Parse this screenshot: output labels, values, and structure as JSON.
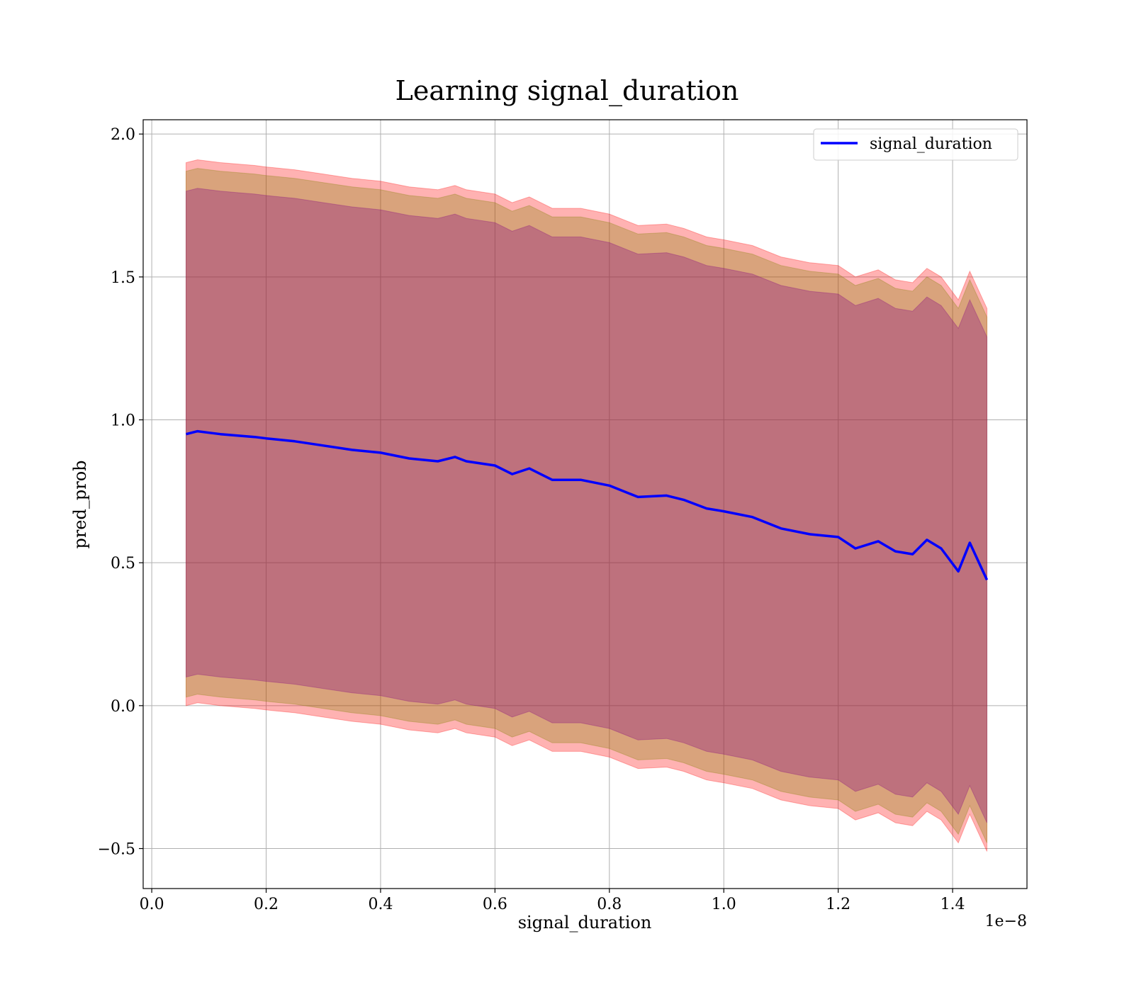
{
  "chart_data": {
    "type": "line",
    "title": "Learning signal_duration",
    "xlabel": "signal_duration",
    "ylabel": "pred_prob",
    "x_multiplier_label": "1e−8",
    "xlim": [
      -0.015,
      1.53
    ],
    "ylim": [
      -0.64,
      2.05
    ],
    "xticks": [
      0.0,
      0.2,
      0.4,
      0.6,
      0.8,
      1.0,
      1.2,
      1.4
    ],
    "xtick_labels": [
      "0.0",
      "0.2",
      "0.4",
      "0.6",
      "0.8",
      "1.0",
      "1.2",
      "1.4"
    ],
    "yticks": [
      -0.5,
      0.0,
      0.5,
      1.0,
      1.5,
      2.0
    ],
    "ytick_labels": [
      "−0.5",
      "0.0",
      "0.5",
      "1.0",
      "1.5",
      "2.0"
    ],
    "grid": true,
    "legend_position": "top-right",
    "series": [
      {
        "name": "signal_duration",
        "color": "#0000ff",
        "x": [
          0.06,
          0.08,
          0.1,
          0.12,
          0.15,
          0.18,
          0.2,
          0.25,
          0.3,
          0.35,
          0.4,
          0.45,
          0.5,
          0.53,
          0.55,
          0.6,
          0.63,
          0.66,
          0.7,
          0.75,
          0.8,
          0.85,
          0.9,
          0.93,
          0.97,
          1.0,
          1.05,
          1.1,
          1.15,
          1.2,
          1.23,
          1.27,
          1.3,
          1.33,
          1.355,
          1.38,
          1.41,
          1.43,
          1.46
        ],
        "y": [
          0.95,
          0.96,
          0.955,
          0.95,
          0.945,
          0.94,
          0.935,
          0.925,
          0.91,
          0.895,
          0.885,
          0.865,
          0.855,
          0.87,
          0.855,
          0.84,
          0.81,
          0.83,
          0.79,
          0.79,
          0.77,
          0.73,
          0.735,
          0.72,
          0.69,
          0.68,
          0.66,
          0.62,
          0.6,
          0.59,
          0.55,
          0.575,
          0.54,
          0.53,
          0.58,
          0.55,
          0.47,
          0.57,
          0.44
        ]
      }
    ],
    "bands": [
      {
        "color": "#ff0000",
        "opacity": 0.3,
        "offset": 0.95
      },
      {
        "color": "#808000",
        "opacity": 0.3,
        "offset": 0.92
      },
      {
        "color": "#800080",
        "opacity": 0.3,
        "offset": 0.85
      }
    ]
  }
}
